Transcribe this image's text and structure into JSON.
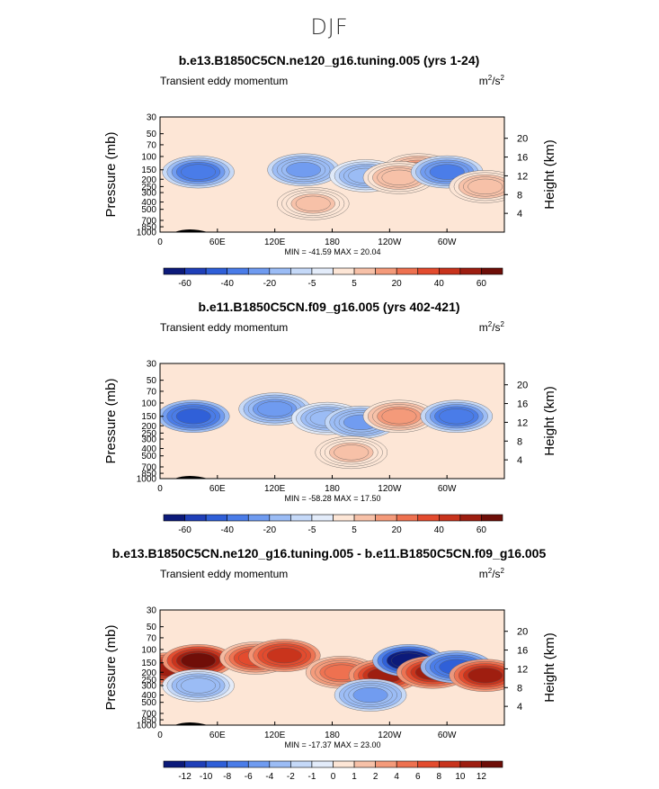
{
  "page_title": "DJF",
  "colors": {
    "bg_field": "#fde6d6",
    "contour_line": "#555555"
  },
  "colorbar_colors": [
    "#0c1a7a",
    "#1f3fb8",
    "#2f5fd8",
    "#4a7ce8",
    "#6f9bf0",
    "#9bbcf5",
    "#c5d9f8",
    "#e3ecfa",
    "#fde6d6",
    "#f7c1a8",
    "#f49a7a",
    "#ee7150",
    "#e34b2e",
    "#c8331c",
    "#9d1d10",
    "#6e0e08"
  ],
  "chart_data": [
    {
      "type": "heatmap",
      "title": "b.e13.B1850C5CN.ne120_g16.tuning.005 (yrs 1-24)",
      "subtitle_left": "Transient eddy momentum",
      "units_base": "m",
      "units_exp1": "2",
      "units_mid": "/s",
      "units_exp2": "2",
      "ylabel": "Pressure (mb)",
      "ylabel_right": "Height (km)",
      "x_ticks": [
        "0",
        "60E",
        "120E",
        "180",
        "120W",
        "60W"
      ],
      "x_tick_values": [
        0,
        60,
        120,
        180,
        240,
        300
      ],
      "xlim": [
        0,
        360
      ],
      "y_ticks": [
        "30",
        "50",
        "70",
        "100",
        "150",
        "200",
        "250",
        "300",
        "400",
        "500",
        "700",
        "850",
        "1000"
      ],
      "y_tick_values": [
        30,
        50,
        70,
        100,
        150,
        200,
        250,
        300,
        400,
        500,
        700,
        850,
        1000
      ],
      "ylim": [
        1000,
        30
      ],
      "right_ticks": [
        "20",
        "16",
        "12",
        "8",
        "4"
      ],
      "right_tick_values": [
        20,
        16,
        12,
        8,
        4
      ],
      "stats_text": "MIN = -41.59   MAX =   20.04",
      "min": -41.59,
      "max": 20.04,
      "colorbar_labels": [
        "-60",
        "-40",
        "-20",
        "-5",
        "5",
        "20",
        "40",
        "60"
      ],
      "colorbar_levels": [
        -70,
        -60,
        -50,
        -40,
        -30,
        -20,
        -10,
        -5,
        0,
        5,
        10,
        20,
        30,
        40,
        50,
        60,
        70
      ],
      "blobs": [
        {
          "lon": 40,
          "p": 160,
          "value": -40
        },
        {
          "lon": 150,
          "p": 150,
          "value": -25
        },
        {
          "lon": 215,
          "p": 180,
          "value": -20
        },
        {
          "lon": 270,
          "p": 150,
          "value": 15
        },
        {
          "lon": 250,
          "p": 190,
          "value": 10
        },
        {
          "lon": 300,
          "p": 160,
          "value": -35
        },
        {
          "lon": 340,
          "p": 250,
          "value": 10
        },
        {
          "lon": 160,
          "p": 420,
          "value": 8
        }
      ]
    },
    {
      "type": "heatmap",
      "title": "b.e11.B1850C5CN.f09_g16.005 (yrs 402-421)",
      "subtitle_left": "Transient eddy momentum",
      "units_base": "m",
      "units_exp1": "2",
      "units_mid": "/s",
      "units_exp2": "2",
      "ylabel": "Pressure (mb)",
      "ylabel_right": "Height (km)",
      "x_ticks": [
        "0",
        "60E",
        "120E",
        "180",
        "120W",
        "60W"
      ],
      "x_tick_values": [
        0,
        60,
        120,
        180,
        240,
        300
      ],
      "xlim": [
        0,
        360
      ],
      "y_ticks": [
        "30",
        "50",
        "70",
        "100",
        "150",
        "200",
        "250",
        "300",
        "400",
        "500",
        "700",
        "850",
        "1000"
      ],
      "y_tick_values": [
        30,
        50,
        70,
        100,
        150,
        200,
        250,
        300,
        400,
        500,
        700,
        850,
        1000
      ],
      "ylim": [
        1000,
        30
      ],
      "right_ticks": [
        "20",
        "16",
        "12",
        "8",
        "4"
      ],
      "right_tick_values": [
        20,
        16,
        12,
        8,
        4
      ],
      "stats_text": "MIN = -58.28   MAX =   17.50",
      "min": -58.28,
      "max": 17.5,
      "colorbar_labels": [
        "-60",
        "-40",
        "-20",
        "-5",
        "5",
        "20",
        "40",
        "60"
      ],
      "colorbar_levels": [
        -70,
        -60,
        -50,
        -40,
        -30,
        -20,
        -10,
        -5,
        0,
        5,
        10,
        20,
        30,
        40,
        50,
        60,
        70
      ],
      "blobs": [
        {
          "lon": 35,
          "p": 150,
          "value": -50
        },
        {
          "lon": 120,
          "p": 120,
          "value": -30
        },
        {
          "lon": 175,
          "p": 160,
          "value": -20
        },
        {
          "lon": 210,
          "p": 180,
          "value": -25
        },
        {
          "lon": 250,
          "p": 150,
          "value": 15
        },
        {
          "lon": 310,
          "p": 150,
          "value": -40
        },
        {
          "lon": 200,
          "p": 450,
          "value": 8
        }
      ]
    },
    {
      "type": "heatmap",
      "title": "b.e13.B1850C5CN.ne120_g16.tuning.005 - b.e11.B1850C5CN.f09_g16.005",
      "subtitle_left": "Transient eddy momentum",
      "units_base": "m",
      "units_exp1": "2",
      "units_mid": "/s",
      "units_exp2": "2",
      "ylabel": "Pressure (mb)",
      "ylabel_right": "Height (km)",
      "x_ticks": [
        "0",
        "60E",
        "120E",
        "180",
        "120W",
        "60W"
      ],
      "x_tick_values": [
        0,
        60,
        120,
        180,
        240,
        300
      ],
      "xlim": [
        0,
        360
      ],
      "y_ticks": [
        "30",
        "50",
        "70",
        "100",
        "150",
        "200",
        "250",
        "300",
        "400",
        "500",
        "700",
        "850",
        "1000"
      ],
      "y_tick_values": [
        30,
        50,
        70,
        100,
        150,
        200,
        250,
        300,
        400,
        500,
        700,
        850,
        1000
      ],
      "ylim": [
        1000,
        30
      ],
      "right_ticks": [
        "20",
        "16",
        "12",
        "8",
        "4"
      ],
      "right_tick_values": [
        20,
        16,
        12,
        8,
        4
      ],
      "stats_text": "MIN = -17.37   MAX =   23.00",
      "min": -17.37,
      "max": 23.0,
      "colorbar_labels": [
        "-12",
        "-10",
        "-8",
        "-6",
        "-4",
        "-2",
        "-1",
        "0",
        "1",
        "2",
        "4",
        "6",
        "8",
        "10",
        "12"
      ],
      "colorbar_levels": [
        -14,
        -12,
        -10,
        -8,
        -6,
        -4,
        -2,
        -1,
        0,
        1,
        2,
        4,
        6,
        8,
        10,
        12,
        14
      ],
      "blobs": [
        {
          "lon": 10,
          "p": 180,
          "value": 12
        },
        {
          "lon": 40,
          "p": 140,
          "value": 14
        },
        {
          "lon": 100,
          "p": 130,
          "value": 8
        },
        {
          "lon": 130,
          "p": 120,
          "value": 10
        },
        {
          "lon": 190,
          "p": 200,
          "value": 6
        },
        {
          "lon": 235,
          "p": 220,
          "value": 12
        },
        {
          "lon": 260,
          "p": 140,
          "value": -16
        },
        {
          "lon": 285,
          "p": 200,
          "value": 12
        },
        {
          "lon": 310,
          "p": 170,
          "value": -10
        },
        {
          "lon": 340,
          "p": 220,
          "value": 12
        },
        {
          "lon": 40,
          "p": 300,
          "value": -4
        },
        {
          "lon": 220,
          "p": 400,
          "value": -5
        }
      ]
    }
  ]
}
